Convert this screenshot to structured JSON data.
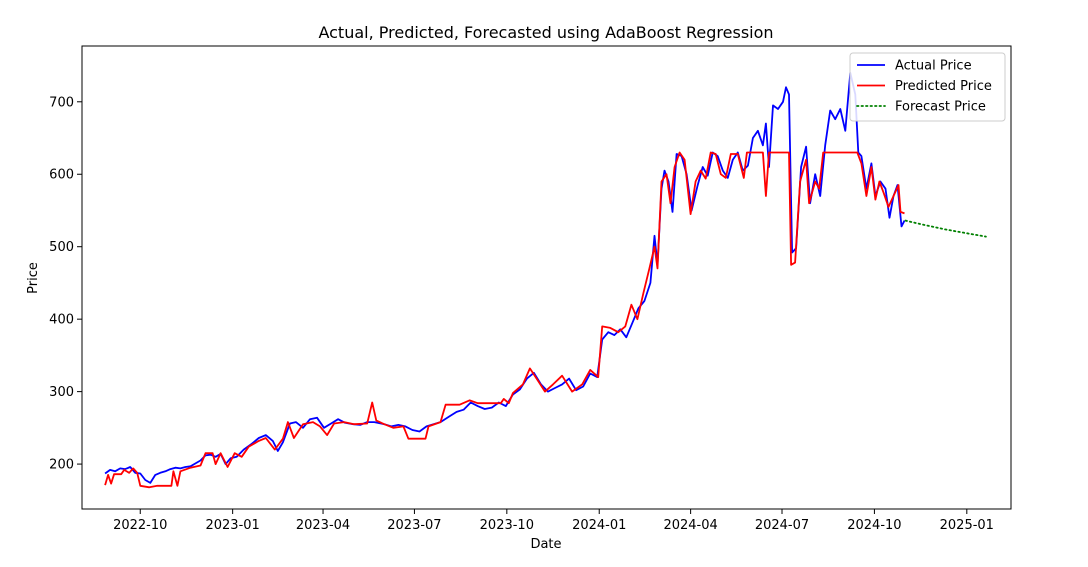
{
  "chart_data": {
    "type": "line",
    "title": "Actual, Predicted, Forecasted using AdaBoost Regression",
    "xlabel": "Date",
    "ylabel": "Price",
    "xlim": [
      "2022-08-04",
      "2025-02-14"
    ],
    "ylim": [
      138,
      777
    ],
    "x_ticks": [
      "2022-10",
      "2023-01",
      "2023-04",
      "2023-07",
      "2023-10",
      "2024-01",
      "2024-04",
      "2024-07",
      "2024-10",
      "2025-01"
    ],
    "y_ticks": [
      200,
      300,
      400,
      500,
      600,
      700
    ],
    "grid": false,
    "legend_position": "top-right",
    "series": [
      {
        "name": "Actual Price",
        "color": "#0000ff",
        "style": "solid",
        "points": [
          [
            "2022-08-27",
            187
          ],
          [
            "2022-09-01",
            192
          ],
          [
            "2022-09-06",
            190
          ],
          [
            "2022-09-11",
            194
          ],
          [
            "2022-09-16",
            193
          ],
          [
            "2022-09-21",
            196
          ],
          [
            "2022-09-26",
            188
          ],
          [
            "2022-10-01",
            187
          ],
          [
            "2022-10-06",
            178
          ],
          [
            "2022-10-11",
            174
          ],
          [
            "2022-10-16",
            185
          ],
          [
            "2022-10-21",
            188
          ],
          [
            "2022-10-26",
            190
          ],
          [
            "2022-10-31",
            193
          ],
          [
            "2022-11-05",
            195
          ],
          [
            "2022-11-10",
            194
          ],
          [
            "2022-11-15",
            196
          ],
          [
            "2022-11-20",
            197
          ],
          [
            "2022-11-25",
            201
          ],
          [
            "2022-11-30",
            205
          ],
          [
            "2022-12-05",
            212
          ],
          [
            "2022-12-10",
            213
          ],
          [
            "2022-12-15",
            210
          ],
          [
            "2022-12-20",
            214
          ],
          [
            "2022-12-25",
            200
          ],
          [
            "2022-12-30",
            208
          ],
          [
            "2023-01-05",
            210
          ],
          [
            "2023-01-12",
            220
          ],
          [
            "2023-01-20",
            228
          ],
          [
            "2023-01-27",
            236
          ],
          [
            "2023-02-03",
            240
          ],
          [
            "2023-02-10",
            232
          ],
          [
            "2023-02-15",
            218
          ],
          [
            "2023-02-20",
            230
          ],
          [
            "2023-02-27",
            256
          ],
          [
            "2023-03-05",
            258
          ],
          [
            "2023-03-12",
            250
          ],
          [
            "2023-03-19",
            262
          ],
          [
            "2023-03-26",
            264
          ],
          [
            "2023-04-02",
            250
          ],
          [
            "2023-04-09",
            256
          ],
          [
            "2023-04-16",
            262
          ],
          [
            "2023-04-23",
            257
          ],
          [
            "2023-05-01",
            255
          ],
          [
            "2023-05-08",
            254
          ],
          [
            "2023-05-15",
            258
          ],
          [
            "2023-05-22",
            258
          ],
          [
            "2023-06-01",
            255
          ],
          [
            "2023-06-08",
            252
          ],
          [
            "2023-06-15",
            254
          ],
          [
            "2023-06-22",
            252
          ],
          [
            "2023-06-29",
            247
          ],
          [
            "2023-07-06",
            245
          ],
          [
            "2023-07-13",
            252
          ],
          [
            "2023-07-20",
            255
          ],
          [
            "2023-07-27",
            258
          ],
          [
            "2023-08-05",
            266
          ],
          [
            "2023-08-12",
            272
          ],
          [
            "2023-08-19",
            275
          ],
          [
            "2023-08-26",
            285
          ],
          [
            "2023-09-02",
            280
          ],
          [
            "2023-09-09",
            276
          ],
          [
            "2023-09-16",
            278
          ],
          [
            "2023-09-23",
            285
          ],
          [
            "2023-09-30",
            280
          ],
          [
            "2023-10-07",
            296
          ],
          [
            "2023-10-14",
            303
          ],
          [
            "2023-10-21",
            318
          ],
          [
            "2023-10-28",
            326
          ],
          [
            "2023-11-04",
            310
          ],
          [
            "2023-11-11",
            300
          ],
          [
            "2023-11-18",
            305
          ],
          [
            "2023-11-25",
            310
          ],
          [
            "2023-12-02",
            318
          ],
          [
            "2023-12-09",
            302
          ],
          [
            "2023-12-16",
            307
          ],
          [
            "2023-12-23",
            325
          ],
          [
            "2023-12-30",
            320
          ],
          [
            "2024-01-04",
            372
          ],
          [
            "2024-01-10",
            382
          ],
          [
            "2024-01-16",
            378
          ],
          [
            "2024-01-22",
            386
          ],
          [
            "2024-01-28",
            375
          ],
          [
            "2024-02-03",
            395
          ],
          [
            "2024-02-09",
            415
          ],
          [
            "2024-02-15",
            425
          ],
          [
            "2024-02-21",
            450
          ],
          [
            "2024-02-25",
            515
          ],
          [
            "2024-02-28",
            475
          ],
          [
            "2024-03-03",
            580
          ],
          [
            "2024-03-06",
            605
          ],
          [
            "2024-03-10",
            590
          ],
          [
            "2024-03-14",
            548
          ],
          [
            "2024-03-18",
            628
          ],
          [
            "2024-03-23",
            625
          ],
          [
            "2024-03-28",
            600
          ],
          [
            "2024-04-02",
            550
          ],
          [
            "2024-04-08",
            585
          ],
          [
            "2024-04-13",
            610
          ],
          [
            "2024-04-18",
            598
          ],
          [
            "2024-04-23",
            630
          ],
          [
            "2024-04-28",
            625
          ],
          [
            "2024-05-03",
            605
          ],
          [
            "2024-05-08",
            595
          ],
          [
            "2024-05-13",
            620
          ],
          [
            "2024-05-18",
            630
          ],
          [
            "2024-05-23",
            605
          ],
          [
            "2024-05-28",
            612
          ],
          [
            "2024-06-02",
            650
          ],
          [
            "2024-06-07",
            660
          ],
          [
            "2024-06-12",
            640
          ],
          [
            "2024-06-15",
            670
          ],
          [
            "2024-06-18",
            610
          ],
          [
            "2024-06-22",
            695
          ],
          [
            "2024-06-27",
            690
          ],
          [
            "2024-07-02",
            700
          ],
          [
            "2024-07-05",
            720
          ],
          [
            "2024-07-08",
            710
          ],
          [
            "2024-07-11",
            492
          ],
          [
            "2024-07-15",
            498
          ],
          [
            "2024-07-20",
            610
          ],
          [
            "2024-07-25",
            638
          ],
          [
            "2024-07-29",
            560
          ],
          [
            "2024-08-03",
            600
          ],
          [
            "2024-08-08",
            570
          ],
          [
            "2024-08-13",
            640
          ],
          [
            "2024-08-18",
            688
          ],
          [
            "2024-08-23",
            676
          ],
          [
            "2024-08-28",
            690
          ],
          [
            "2024-09-02",
            660
          ],
          [
            "2024-09-07",
            740
          ],
          [
            "2024-09-12",
            710
          ],
          [
            "2024-09-15",
            630
          ],
          [
            "2024-09-18",
            625
          ],
          [
            "2024-09-23",
            580
          ],
          [
            "2024-09-28",
            615
          ],
          [
            "2024-10-02",
            570
          ],
          [
            "2024-10-07",
            590
          ],
          [
            "2024-10-12",
            580
          ],
          [
            "2024-10-16",
            540
          ],
          [
            "2024-10-20",
            570
          ],
          [
            "2024-10-24",
            585
          ],
          [
            "2024-10-28",
            528
          ],
          [
            "2024-10-31",
            536
          ]
        ]
      },
      {
        "name": "Predicted Price",
        "color": "#ff0000",
        "style": "solid",
        "points": [
          [
            "2022-08-27",
            171
          ],
          [
            "2022-08-30",
            185
          ],
          [
            "2022-09-02",
            173
          ],
          [
            "2022-09-05",
            186
          ],
          [
            "2022-09-12",
            186
          ],
          [
            "2022-09-15",
            192
          ],
          [
            "2022-09-20",
            188
          ],
          [
            "2022-09-24",
            194
          ],
          [
            "2022-09-28",
            188
          ],
          [
            "2022-10-01",
            170
          ],
          [
            "2022-10-10",
            168
          ],
          [
            "2022-10-18",
            170
          ],
          [
            "2022-11-01",
            170
          ],
          [
            "2022-11-03",
            190
          ],
          [
            "2022-11-07",
            170
          ],
          [
            "2022-11-10",
            190
          ],
          [
            "2022-11-20",
            195
          ],
          [
            "2022-11-30",
            198
          ],
          [
            "2022-12-05",
            215
          ],
          [
            "2022-12-12",
            215
          ],
          [
            "2022-12-15",
            200
          ],
          [
            "2022-12-20",
            215
          ],
          [
            "2022-12-27",
            196
          ],
          [
            "2023-01-03",
            215
          ],
          [
            "2023-01-10",
            210
          ],
          [
            "2023-01-17",
            224
          ],
          [
            "2023-01-27",
            232
          ],
          [
            "2023-02-03",
            236
          ],
          [
            "2023-02-12",
            220
          ],
          [
            "2023-02-20",
            235
          ],
          [
            "2023-02-25",
            258
          ],
          [
            "2023-03-03",
            236
          ],
          [
            "2023-03-12",
            255
          ],
          [
            "2023-03-22",
            258
          ],
          [
            "2023-03-29",
            252
          ],
          [
            "2023-04-05",
            240
          ],
          [
            "2023-04-12",
            256
          ],
          [
            "2023-04-22",
            258
          ],
          [
            "2023-05-02",
            255
          ],
          [
            "2023-05-15",
            256
          ],
          [
            "2023-05-20",
            285
          ],
          [
            "2023-05-24",
            260
          ],
          [
            "2023-06-01",
            255
          ],
          [
            "2023-06-10",
            250
          ],
          [
            "2023-06-20",
            252
          ],
          [
            "2023-06-25",
            235
          ],
          [
            "2023-07-12",
            235
          ],
          [
            "2023-07-15",
            252
          ],
          [
            "2023-07-27",
            258
          ],
          [
            "2023-08-01",
            282
          ],
          [
            "2023-08-15",
            282
          ],
          [
            "2023-08-25",
            288
          ],
          [
            "2023-09-02",
            284
          ],
          [
            "2023-09-25",
            284
          ],
          [
            "2023-09-28",
            290
          ],
          [
            "2023-10-03",
            284
          ],
          [
            "2023-10-07",
            298
          ],
          [
            "2023-10-17",
            310
          ],
          [
            "2023-10-24",
            332
          ],
          [
            "2023-11-01",
            315
          ],
          [
            "2023-11-08",
            300
          ],
          [
            "2023-11-16",
            310
          ],
          [
            "2023-11-25",
            322
          ],
          [
            "2023-12-05",
            300
          ],
          [
            "2023-12-15",
            310
          ],
          [
            "2023-12-23",
            330
          ],
          [
            "2023-12-31",
            320
          ],
          [
            "2024-01-04",
            390
          ],
          [
            "2024-01-12",
            388
          ],
          [
            "2024-01-20",
            382
          ],
          [
            "2024-01-27",
            390
          ],
          [
            "2024-02-02",
            420
          ],
          [
            "2024-02-08",
            400
          ],
          [
            "2024-02-14",
            436
          ],
          [
            "2024-02-20",
            470
          ],
          [
            "2024-02-25",
            500
          ],
          [
            "2024-02-28",
            470
          ],
          [
            "2024-03-03",
            590
          ],
          [
            "2024-03-08",
            600
          ],
          [
            "2024-03-12",
            560
          ],
          [
            "2024-03-16",
            610
          ],
          [
            "2024-03-21",
            630
          ],
          [
            "2024-03-26",
            620
          ],
          [
            "2024-04-01",
            545
          ],
          [
            "2024-04-06",
            590
          ],
          [
            "2024-04-11",
            605
          ],
          [
            "2024-04-16",
            594
          ],
          [
            "2024-04-21",
            630
          ],
          [
            "2024-04-26",
            628
          ],
          [
            "2024-05-01",
            600
          ],
          [
            "2024-05-06",
            595
          ],
          [
            "2024-05-11",
            628
          ],
          [
            "2024-05-18",
            628
          ],
          [
            "2024-05-24",
            595
          ],
          [
            "2024-05-27",
            630
          ],
          [
            "2024-06-12",
            630
          ],
          [
            "2024-06-15",
            570
          ],
          [
            "2024-06-18",
            630
          ],
          [
            "2024-07-08",
            630
          ],
          [
            "2024-07-10",
            475
          ],
          [
            "2024-07-14",
            478
          ],
          [
            "2024-07-19",
            590
          ],
          [
            "2024-07-25",
            620
          ],
          [
            "2024-07-28",
            560
          ],
          [
            "2024-08-03",
            590
          ],
          [
            "2024-08-07",
            580
          ],
          [
            "2024-08-11",
            630
          ],
          [
            "2024-09-14",
            630
          ],
          [
            "2024-09-18",
            615
          ],
          [
            "2024-09-23",
            570
          ],
          [
            "2024-09-28",
            610
          ],
          [
            "2024-10-02",
            565
          ],
          [
            "2024-10-06",
            590
          ],
          [
            "2024-10-10",
            575
          ],
          [
            "2024-10-15",
            555
          ],
          [
            "2024-10-20",
            570
          ],
          [
            "2024-10-25",
            585
          ],
          [
            "2024-10-27",
            548
          ],
          [
            "2024-10-31",
            546
          ]
        ]
      },
      {
        "name": "Forecast Price",
        "color": "#008000",
        "style": "dotted",
        "points": [
          [
            "2024-11-01",
            536
          ],
          [
            "2024-11-20",
            530
          ],
          [
            "2024-12-10",
            524
          ],
          [
            "2024-12-30",
            519
          ],
          [
            "2025-01-20",
            514
          ]
        ]
      }
    ]
  }
}
